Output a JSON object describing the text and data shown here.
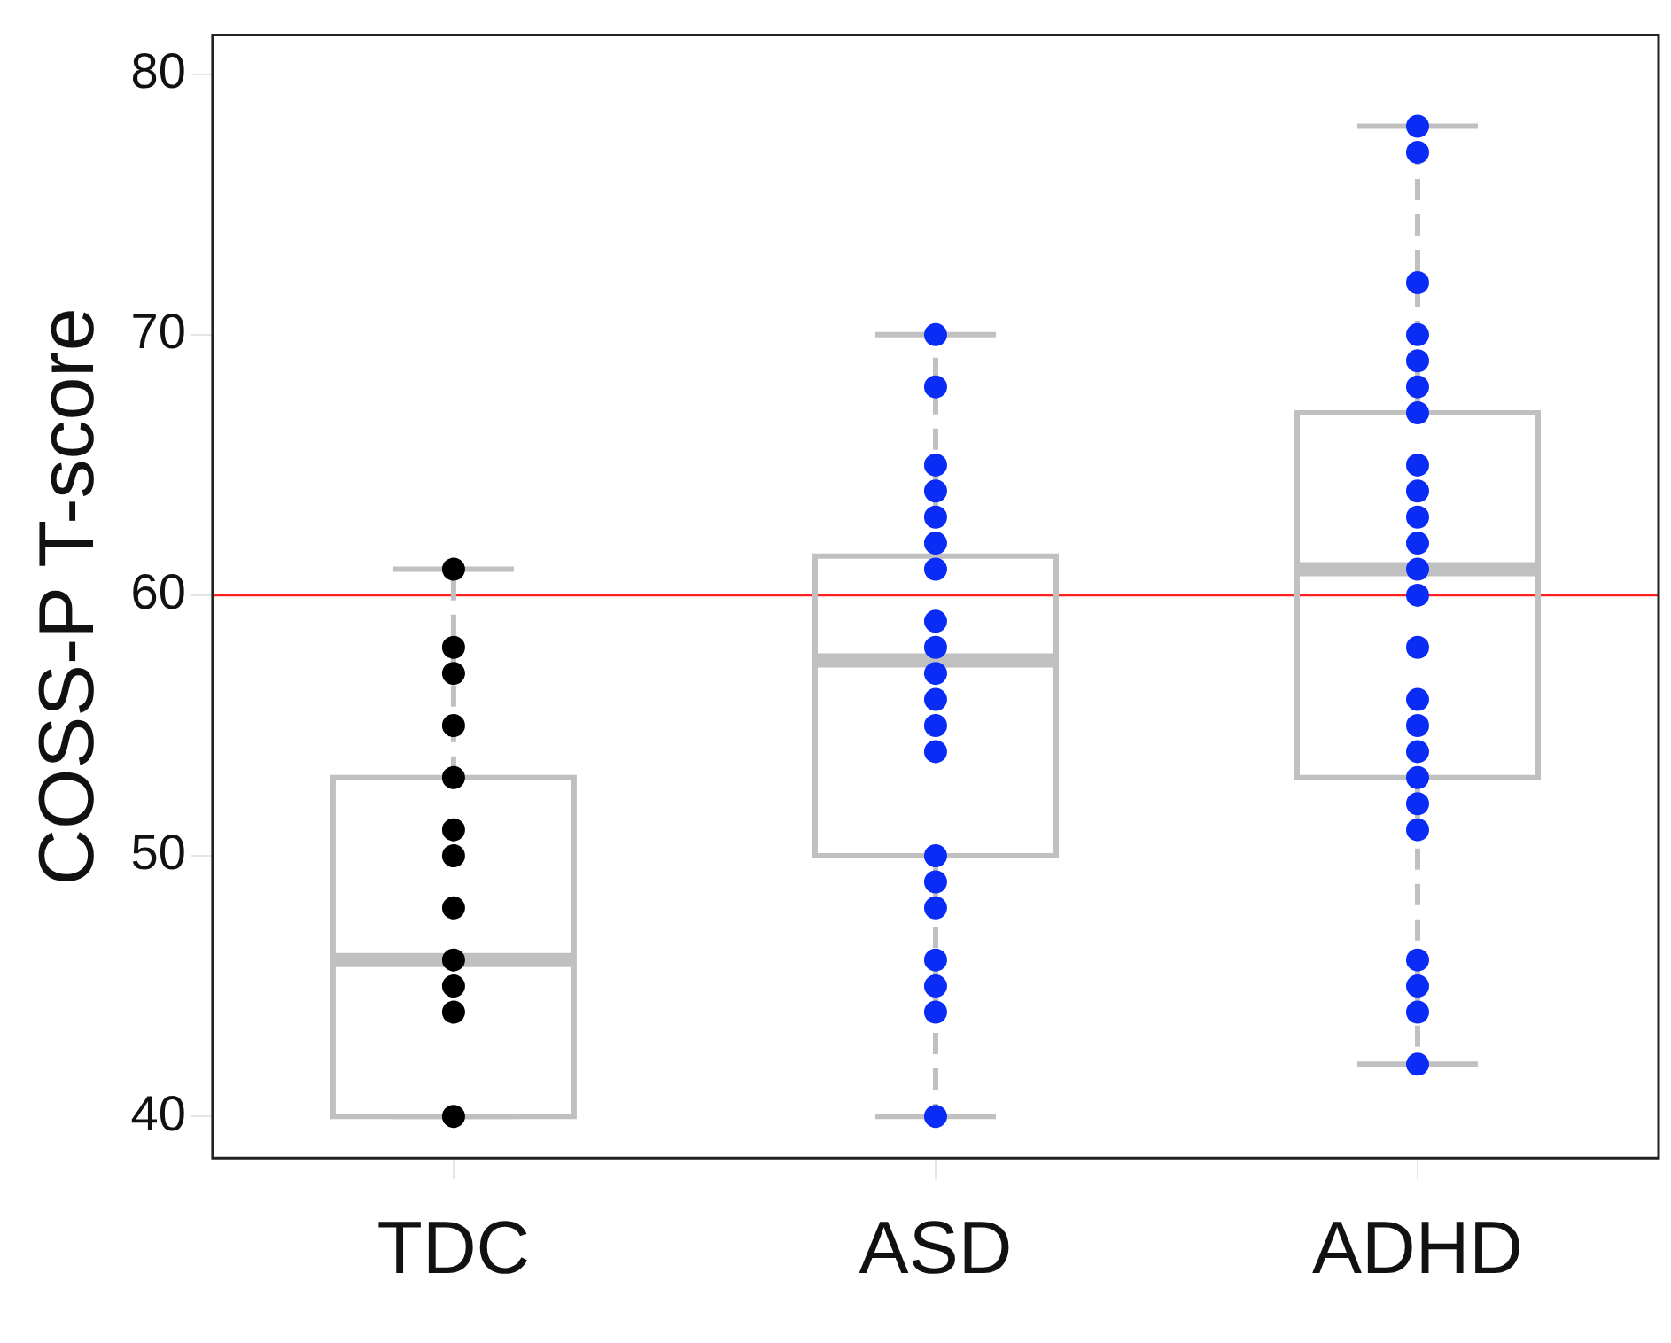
{
  "chart_data": {
    "type": "box",
    "ylabel": "COSS-P T-score",
    "categories": [
      "TDC",
      "ASD",
      "ADHD"
    ],
    "ylim": [
      38.4,
      81.5
    ],
    "yticks": [
      40,
      50,
      60,
      70,
      80
    ],
    "grid": false,
    "legend": false,
    "ref_lines": [
      {
        "axis": "y",
        "value": 60,
        "color": "#ff2020"
      }
    ],
    "series": [
      {
        "type": "box",
        "color": "#c0c0c0",
        "line_style": "dashed",
        "boxes": [
          {
            "low": 40,
            "q1": 40,
            "median": 46,
            "q3": 53,
            "high": 61
          },
          {
            "low": 40,
            "q1": 50,
            "median": 57.5,
            "q3": 61.5,
            "high": 70
          },
          {
            "low": 42,
            "q1": 53,
            "median": 61,
            "q3": 67,
            "high": 78
          }
        ]
      },
      {
        "type": "scatter",
        "color": "#000000",
        "marker": "circle",
        "x": [
          "TDC",
          "TDC",
          "TDC",
          "TDC",
          "TDC",
          "TDC",
          "TDC",
          "TDC",
          "TDC",
          "TDC",
          "TDC",
          "TDC"
        ],
        "values": [
          61,
          58,
          57,
          55,
          53,
          51,
          50,
          48,
          46,
          45,
          44,
          40
        ]
      },
      {
        "type": "scatter",
        "color": "#0a2cf5",
        "marker": "circle",
        "x": [
          "ASD",
          "ASD",
          "ASD",
          "ASD",
          "ASD",
          "ASD",
          "ASD",
          "ASD",
          "ASD",
          "ASD",
          "ASD",
          "ASD",
          "ASD",
          "ASD",
          "ASD",
          "ASD",
          "ASD",
          "ASD",
          "ASD",
          "ASD"
        ],
        "values": [
          70,
          68,
          65,
          64,
          63,
          62,
          61,
          59,
          58,
          57,
          56,
          55,
          54,
          50,
          49,
          48,
          46,
          45,
          44,
          40
        ]
      },
      {
        "type": "scatter",
        "color": "#0a2cf5",
        "marker": "circle",
        "x": [
          "ADHD",
          "ADHD",
          "ADHD",
          "ADHD",
          "ADHD",
          "ADHD",
          "ADHD",
          "ADHD",
          "ADHD",
          "ADHD",
          "ADHD",
          "ADHD",
          "ADHD",
          "ADHD",
          "ADHD",
          "ADHD",
          "ADHD",
          "ADHD",
          "ADHD",
          "ADHD",
          "ADHD",
          "ADHD",
          "ADHD",
          "ADHD"
        ],
        "values": [
          78,
          77,
          72,
          70,
          69,
          68,
          67,
          65,
          64,
          63,
          62,
          61,
          60,
          58,
          56,
          55,
          54,
          53,
          52,
          51,
          46,
          45,
          44,
          42
        ]
      }
    ]
  }
}
